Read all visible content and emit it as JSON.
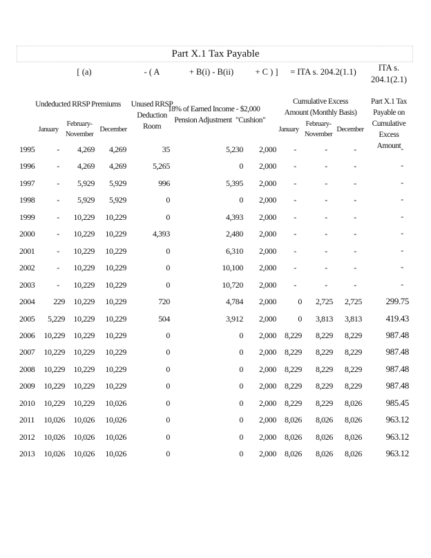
{
  "title": "Part X.1 Tax Payable",
  "formula": {
    "a": "[   (a)",
    "A": "-  ( A",
    "B": "+  B(i) - B(ii)",
    "C": "+  C )  ]",
    "eq": "= ITA s. 204.2(1.1)",
    "ita": "ITA s. 204.1(2.1)"
  },
  "headers": {
    "undeducted": "Undeducted RRSP Premiums",
    "unused": "Unused RRSP Deduction Room",
    "earned": "18% of Earned Income - Pension Adjustment",
    "cushion": "$2,000 \"Cushion\"",
    "cumulative": "Cumulative Excess Amount (Monthly Basis)",
    "tax": "Part X.1 Tax Payable on Cumulative Excess Amount",
    "january": "January",
    "feb_nov": "February-November",
    "december": "December",
    "cum_january": "January",
    "cum_feb_nov": "February-November",
    "cum_december": "December"
  },
  "rows": [
    [
      "1995",
      "-",
      "4,269",
      "4,269",
      "35",
      "5,230",
      "2,000",
      "-",
      "-",
      "-",
      "-"
    ],
    [
      "1996",
      "-",
      "4,269",
      "4,269",
      "5,265",
      "0",
      "2,000",
      "-",
      "-",
      "-",
      "-"
    ],
    [
      "1997",
      "-",
      "5,929",
      "5,929",
      "996",
      "5,395",
      "2,000",
      "-",
      "-",
      "-",
      "-"
    ],
    [
      "1998",
      "-",
      "5,929",
      "5,929",
      "0",
      "0",
      "2,000",
      "-",
      "-",
      "-",
      "-"
    ],
    [
      "1999",
      "-",
      "10,229",
      "10,229",
      "0",
      "4,393",
      "2,000",
      "-",
      "-",
      "-",
      "-"
    ],
    [
      "2000",
      "-",
      "10,229",
      "10,229",
      "4,393",
      "2,480",
      "2,000",
      "-",
      "-",
      "-",
      "-"
    ],
    [
      "2001",
      "-",
      "10,229",
      "10,229",
      "0",
      "6,310",
      "2,000",
      "-",
      "-",
      "-",
      "-"
    ],
    [
      "2002",
      "-",
      "10,229",
      "10,229",
      "0",
      "10,100",
      "2,000",
      "-",
      "-",
      "-",
      "-"
    ],
    [
      "2003",
      "-",
      "10,229",
      "10,229",
      "0",
      "10,720",
      "2,000",
      "-",
      "-",
      "-",
      "-"
    ],
    [
      "2004",
      "229",
      "10,229",
      "10,229",
      "720",
      "4,784",
      "2,000",
      "0",
      "2,725",
      "2,725",
      "299.75"
    ],
    [
      "2005",
      "5,229",
      "10,229",
      "10,229",
      "504",
      "3,912",
      "2,000",
      "0",
      "3,813",
      "3,813",
      "419.43"
    ],
    [
      "2006",
      "10,229",
      "10,229",
      "10,229",
      "0",
      "0",
      "2,000",
      "8,229",
      "8,229",
      "8,229",
      "987.48"
    ],
    [
      "2007",
      "10,229",
      "10,229",
      "10,229",
      "0",
      "0",
      "2,000",
      "8,229",
      "8,229",
      "8,229",
      "987.48"
    ],
    [
      "2008",
      "10,229",
      "10,229",
      "10,229",
      "0",
      "0",
      "2,000",
      "8,229",
      "8,229",
      "8,229",
      "987.48"
    ],
    [
      "2009",
      "10,229",
      "10,229",
      "10,229",
      "0",
      "0",
      "2,000",
      "8,229",
      "8,229",
      "8,229",
      "987.48"
    ],
    [
      "2010",
      "10,229",
      "10,229",
      "10,026",
      "0",
      "0",
      "2,000",
      "8,229",
      "8,229",
      "8,026",
      "985.45"
    ],
    [
      "2011",
      "10,026",
      "10,026",
      "10,026",
      "0",
      "0",
      "2,000",
      "8,026",
      "8,026",
      "8,026",
      "963.12"
    ],
    [
      "2012",
      "10,026",
      "10,026",
      "10,026",
      "0",
      "0",
      "2,000",
      "8,026",
      "8,026",
      "8,026",
      "963.12"
    ],
    [
      "2013",
      "10,026",
      "10,026",
      "10,026",
      "0",
      "0",
      "2,000",
      "8,026",
      "8,026",
      "8,026",
      "963.12"
    ]
  ]
}
